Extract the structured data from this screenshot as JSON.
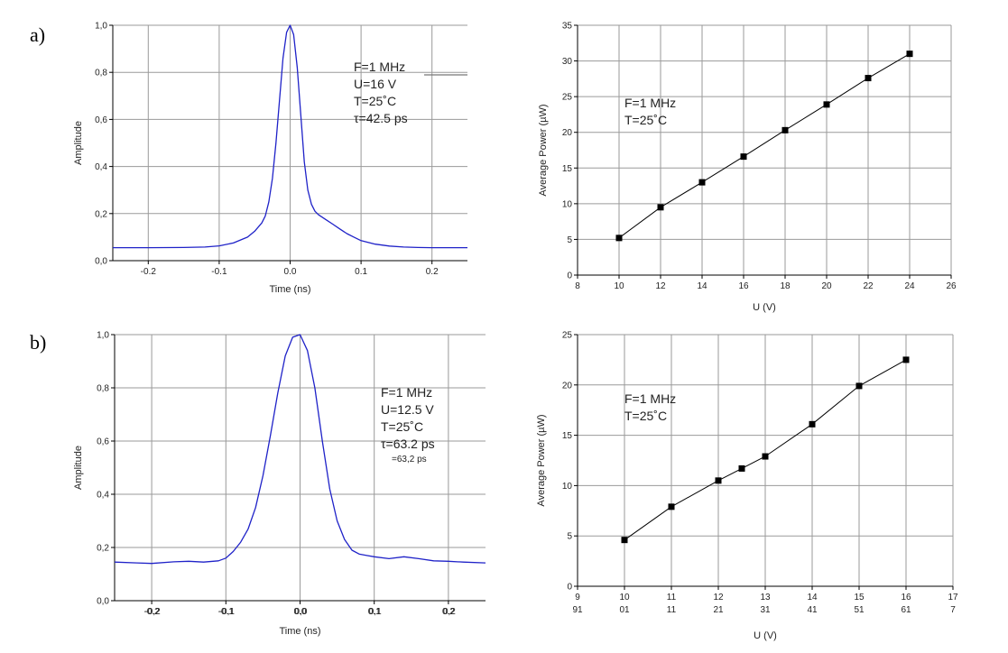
{
  "panel_labels": [
    "a)",
    "b)"
  ],
  "colors": {
    "curve": "#1f22c8",
    "grid": "#9a9a9a",
    "axis": "#000000",
    "marker": "#000000"
  },
  "chart_data": [
    {
      "id": "a-pulse",
      "type": "line",
      "xlabel": "Time (ns)",
      "ylabel": "Amplitude",
      "xlim": [
        -0.25,
        0.25
      ],
      "ylim": [
        0.0,
        1.0
      ],
      "x_ticks": [
        "-0.2",
        "-0.1",
        "0.0",
        "0.1",
        "0.2"
      ],
      "x_tick_values": [
        -0.2,
        -0.1,
        0.0,
        0.1,
        0.2
      ],
      "y_ticks": [
        "0,0",
        "0,2",
        "0,4",
        "0,6",
        "0,8",
        "1,0"
      ],
      "y_tick_values": [
        0.0,
        0.2,
        0.4,
        0.6,
        0.8,
        1.0
      ],
      "grid": true,
      "annotations": [
        "F=1 MHz",
        "U=16 V",
        "T=25˚C",
        "τ=42.5 ps"
      ],
      "x": [
        -0.25,
        -0.2,
        -0.15,
        -0.12,
        -0.1,
        -0.08,
        -0.06,
        -0.05,
        -0.04,
        -0.035,
        -0.03,
        -0.025,
        -0.02,
        -0.015,
        -0.01,
        -0.005,
        0.0,
        0.005,
        0.01,
        0.015,
        0.02,
        0.025,
        0.03,
        0.035,
        0.04,
        0.05,
        0.06,
        0.07,
        0.08,
        0.09,
        0.1,
        0.12,
        0.14,
        0.16,
        0.18,
        0.2,
        0.25
      ],
      "y": [
        0.055,
        0.055,
        0.056,
        0.058,
        0.063,
        0.075,
        0.1,
        0.125,
        0.16,
        0.19,
        0.25,
        0.35,
        0.5,
        0.68,
        0.86,
        0.97,
        1.0,
        0.96,
        0.82,
        0.62,
        0.42,
        0.3,
        0.24,
        0.21,
        0.195,
        0.175,
        0.155,
        0.135,
        0.115,
        0.1,
        0.085,
        0.07,
        0.062,
        0.058,
        0.056,
        0.055,
        0.055
      ]
    },
    {
      "id": "a-power",
      "type": "scatter",
      "xlabel": "U (V)",
      "ylabel": "Average Power (µW)",
      "xlim": [
        8,
        26
      ],
      "ylim": [
        0,
        35
      ],
      "x_ticks": [
        "8",
        "10",
        "12",
        "14",
        "16",
        "18",
        "20",
        "22",
        "24",
        "26"
      ],
      "x_tick_values": [
        8,
        10,
        12,
        14,
        16,
        18,
        20,
        22,
        24,
        26
      ],
      "y_ticks": [
        "0",
        "5",
        "10",
        "15",
        "20",
        "25",
        "30",
        "35"
      ],
      "y_tick_values": [
        0,
        5,
        10,
        15,
        20,
        25,
        30,
        35
      ],
      "grid": true,
      "annotations": [
        "F=1 MHz",
        "T=25˚C"
      ],
      "x": [
        10,
        12,
        14,
        16,
        18,
        20,
        22,
        24
      ],
      "y": [
        5.2,
        9.5,
        13.0,
        16.6,
        20.3,
        23.9,
        27.6,
        31.0
      ]
    },
    {
      "id": "b-pulse",
      "type": "line",
      "xlabel": "Time (ns)",
      "ylabel": "Amplitude",
      "xlim": [
        -0.25,
        0.25
      ],
      "ylim": [
        0.0,
        1.0
      ],
      "x_ticks": [
        "-0.2",
        "-0.1",
        "0.0",
        "0.1",
        "0.2"
      ],
      "x_tick_values": [
        -0.2,
        -0.1,
        0.0,
        0.1,
        0.2
      ],
      "x_ticks_overprint": [
        "-0,2",
        "-0,1",
        "0,0",
        "0,1",
        "0,2"
      ],
      "y_ticks": [
        "0,0",
        "0,2",
        "0,4",
        "0,6",
        "0,8",
        "1,0"
      ],
      "y_tick_values": [
        0.0,
        0.2,
        0.4,
        0.6,
        0.8,
        1.0
      ],
      "grid": true,
      "annotations": [
        "F=1  MHz",
        "U=12.5 V",
        "T=25˚C",
        "τ=63.2 ps"
      ],
      "annotation_extra": "=63,2 ps",
      "x": [
        -0.25,
        -0.22,
        -0.2,
        -0.17,
        -0.15,
        -0.13,
        -0.11,
        -0.1,
        -0.09,
        -0.08,
        -0.07,
        -0.06,
        -0.05,
        -0.04,
        -0.03,
        -0.02,
        -0.01,
        0.0,
        0.01,
        0.02,
        0.03,
        0.04,
        0.05,
        0.06,
        0.07,
        0.08,
        0.09,
        0.1,
        0.12,
        0.14,
        0.16,
        0.18,
        0.2,
        0.22,
        0.25
      ],
      "y": [
        0.145,
        0.142,
        0.14,
        0.146,
        0.148,
        0.145,
        0.15,
        0.16,
        0.185,
        0.22,
        0.27,
        0.35,
        0.47,
        0.62,
        0.78,
        0.92,
        0.99,
        1.0,
        0.94,
        0.8,
        0.6,
        0.42,
        0.3,
        0.23,
        0.19,
        0.175,
        0.17,
        0.165,
        0.158,
        0.165,
        0.158,
        0.15,
        0.148,
        0.145,
        0.142
      ]
    },
    {
      "id": "b-power",
      "type": "scatter",
      "xlabel": "U (V)",
      "ylabel": "Average Power (µW)",
      "xlim": [
        9,
        17
      ],
      "ylim": [
        0,
        25
      ],
      "x_ticks": [
        "9",
        "10",
        "11",
        "12",
        "13",
        "14",
        "15",
        "16",
        "17"
      ],
      "x_tick_values": [
        9,
        10,
        11,
        12,
        13,
        14,
        15,
        16,
        17
      ],
      "x_ticks_secondary": [
        "91",
        "01",
        "11",
        "21",
        "31",
        "41",
        "51",
        "61",
        "7"
      ],
      "y_ticks": [
        "0",
        "5",
        "10",
        "15",
        "20",
        "25"
      ],
      "y_tick_values": [
        0,
        5,
        10,
        15,
        20,
        25
      ],
      "grid": true,
      "annotations": [
        "F=1 MHz",
        "T=25˚C"
      ],
      "x": [
        10,
        11,
        12,
        12.5,
        13,
        14,
        15,
        16
      ],
      "y": [
        4.6,
        7.9,
        10.5,
        11.7,
        12.9,
        16.1,
        19.9,
        22.5
      ]
    }
  ]
}
